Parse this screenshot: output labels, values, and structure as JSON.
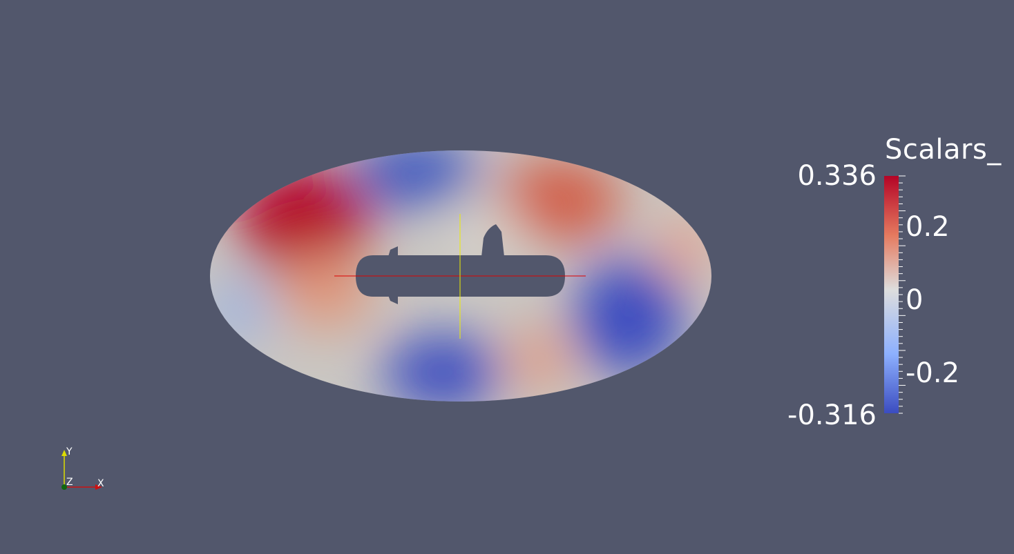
{
  "scalar_bar": {
    "title": "Scalars_",
    "max_label": "0.336",
    "min_label": "-0.316",
    "range": [
      -0.316,
      0.336
    ],
    "ticks": [
      {
        "value": 0.2,
        "label": "0.2"
      },
      {
        "value": 0,
        "label": "0"
      },
      {
        "value": -0.2,
        "label": "-0.2"
      }
    ],
    "colors": {
      "high": "#b40426",
      "mid": "#dddddd",
      "low": "#3b4cc0"
    }
  },
  "orientation_axes": {
    "x_label": "X",
    "y_label": "Y",
    "z_label": "Z",
    "colors": {
      "x": "#cc1111",
      "y": "#dddd00",
      "z": "#116611"
    }
  },
  "colors": {
    "background": "#52576c",
    "center_axis_x": "#dd0000",
    "center_axis_y": "#eeee00"
  }
}
